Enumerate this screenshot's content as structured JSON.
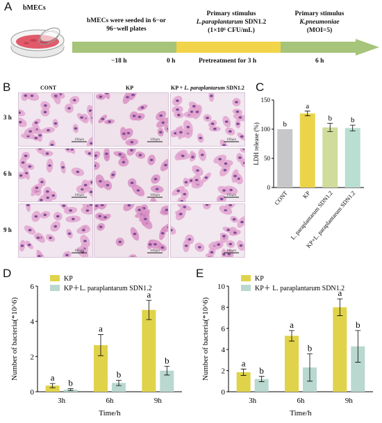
{
  "panelA": {
    "letter": "A",
    "dish_label": "bMECs",
    "stage1": "bMECs were seeded in 6−or 96−well plates",
    "stage2_title": "Primary stimulus",
    "stage2_organism": "L.paraplantarum",
    "stage2_strain": "SDN1.2",
    "stage2_dose": "(1×10⁶ CFU/mL)",
    "stage3_title": "Primary stimulus",
    "stage3_organism": "K.pneumoniae",
    "stage3_dose": "(MOI=5)",
    "t1": "−18 h",
    "t2": "0 h",
    "pretreat": "Pretreatment for 3 h",
    "t3": "6 h",
    "colors": {
      "arrow_green": "#a6c47a",
      "arrow_yellow": "#f2d44a"
    }
  },
  "panelB": {
    "letter": "B",
    "col_labels": [
      "CONT",
      "KP",
      "KP + ",
      "L. paraplantarum",
      " SDN1.2"
    ],
    "row_labels": [
      "3 h",
      "6 h",
      "9 h"
    ],
    "scale_text": "100μm"
  },
  "panelC": {
    "letter": "C",
    "chart_data": {
      "type": "bar",
      "ylabel": "LDH release (%)",
      "ylim": [
        0,
        150
      ],
      "yticks": [
        0,
        50,
        100,
        150
      ],
      "categories": [
        "CONT",
        "KP",
        "L. paraplantarum SDN1.2",
        "KP+L. paraplantarum SDN1.2"
      ],
      "values": [
        100,
        127,
        103,
        102
      ],
      "errors": [
        0,
        4,
        7,
        5
      ],
      "letters": [
        "b",
        "a",
        "b",
        "b"
      ],
      "colors": [
        "#c7c7c9",
        "#ecd44a",
        "#cfdc9c",
        "#b9ded2"
      ]
    }
  },
  "panelD": {
    "letter": "D",
    "chart_data": {
      "type": "bar",
      "xlabel": "Time/h",
      "ylabel": "Number of bacteria(*10^6)",
      "ylim": [
        0,
        6
      ],
      "yticks": [
        0,
        2,
        4,
        6
      ],
      "categories": [
        "3h",
        "6h",
        "9h"
      ],
      "series": [
        {
          "name": "KP",
          "values": [
            0.35,
            2.65,
            4.65
          ],
          "errors": [
            0.12,
            0.6,
            0.55
          ],
          "letters": [
            "a",
            "a",
            "a"
          ],
          "color": "#e0d34a"
        },
        {
          "name": "KP＋L. paraplantarum SDN1.2",
          "values": [
            0.12,
            0.5,
            1.2
          ],
          "errors": [
            0.05,
            0.15,
            0.25
          ],
          "letters": [
            "b",
            "b",
            "b"
          ],
          "color": "#b9d8cf"
        }
      ],
      "legend_position": "top-left"
    }
  },
  "panelE": {
    "letter": "E",
    "chart_data": {
      "type": "bar",
      "xlabel": "Time/h",
      "ylabel": "Number of bacteria(*10^6)",
      "ylim": [
        0,
        10
      ],
      "yticks": [
        0,
        2,
        4,
        6,
        8,
        10
      ],
      "categories": [
        "3h",
        "6h",
        "9h"
      ],
      "series": [
        {
          "name": "KP",
          "values": [
            1.85,
            5.3,
            8.0
          ],
          "errors": [
            0.3,
            0.5,
            0.8
          ],
          "letters": [
            "a",
            "a",
            "a"
          ],
          "color": "#e0d34a"
        },
        {
          "name": "KP＋ L. paraplantarum SDN1.2",
          "values": [
            1.2,
            2.3,
            4.3
          ],
          "errors": [
            0.25,
            1.3,
            1.5
          ],
          "letters": [
            "b",
            "b",
            "b"
          ],
          "color": "#b9d8cf"
        }
      ],
      "legend_position": "top-left"
    }
  }
}
